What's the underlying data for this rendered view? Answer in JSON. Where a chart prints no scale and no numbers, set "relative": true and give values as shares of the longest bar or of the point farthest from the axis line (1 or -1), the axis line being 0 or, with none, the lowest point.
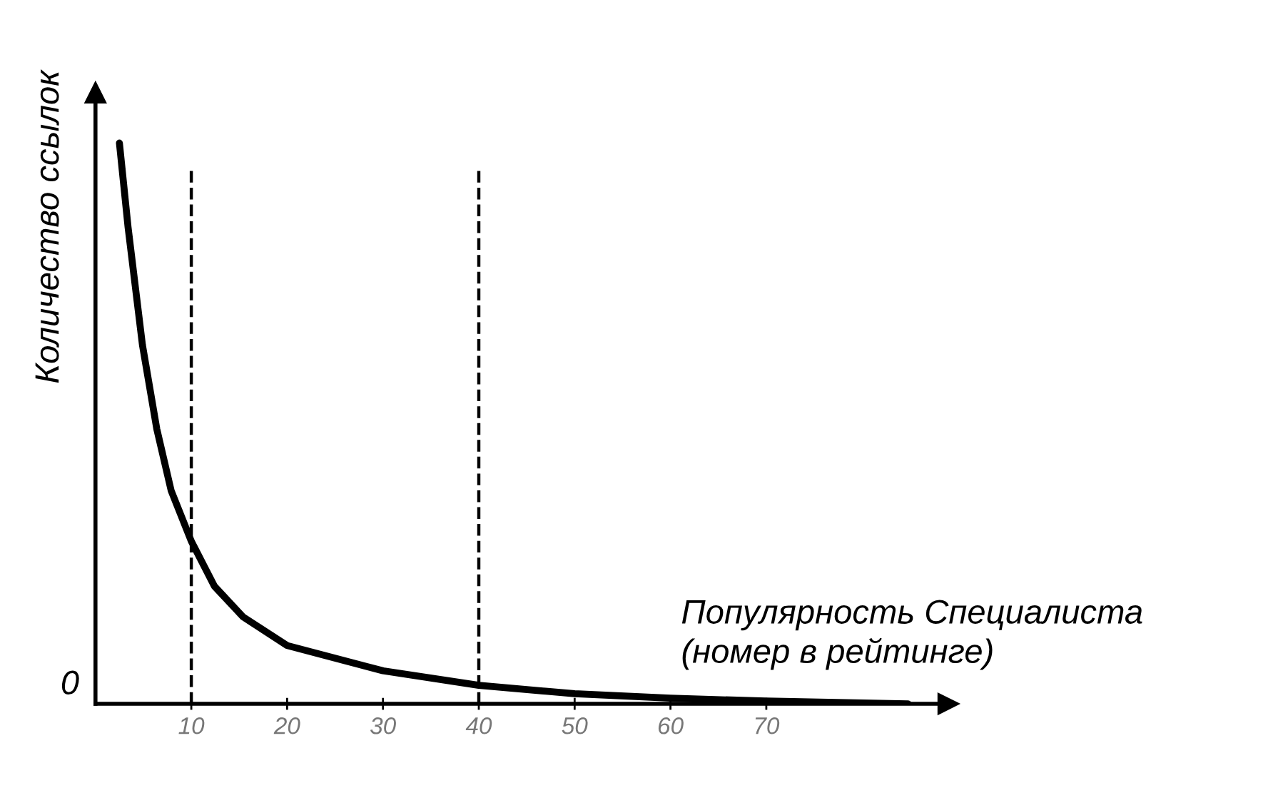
{
  "chart_data": {
    "type": "line",
    "relative": true,
    "xlabel": "Популярность Специалиста\n(номер в рейтинге)",
    "ylabel": "Количество ссылок",
    "annotations": [
      "0"
    ],
    "xlim": [
      0,
      89
    ],
    "xticks": [
      10,
      20,
      30,
      40,
      50,
      60,
      70
    ],
    "series": [
      {
        "color": "#000000",
        "line_style": "solid",
        "x": [
          2.5,
          3.4,
          4.9,
          6.4,
          7.9,
          10,
          12.4,
          15.4,
          20,
          30,
          40,
          50,
          60,
          70,
          84.8
        ],
        "values": [
          1.0,
          0.85,
          0.64,
          0.49,
          0.38,
          0.29,
          0.21,
          0.155,
          0.104,
          0.059,
          0.033,
          0.018,
          0.01,
          0.005,
          0.0
        ]
      }
    ],
    "ref_lines": [
      {
        "axis": "x",
        "value": 10,
        "color": "#000000",
        "line_style": "dashed"
      },
      {
        "axis": "x",
        "value": 40,
        "color": "#000000",
        "line_style": "dashed"
      }
    ]
  }
}
